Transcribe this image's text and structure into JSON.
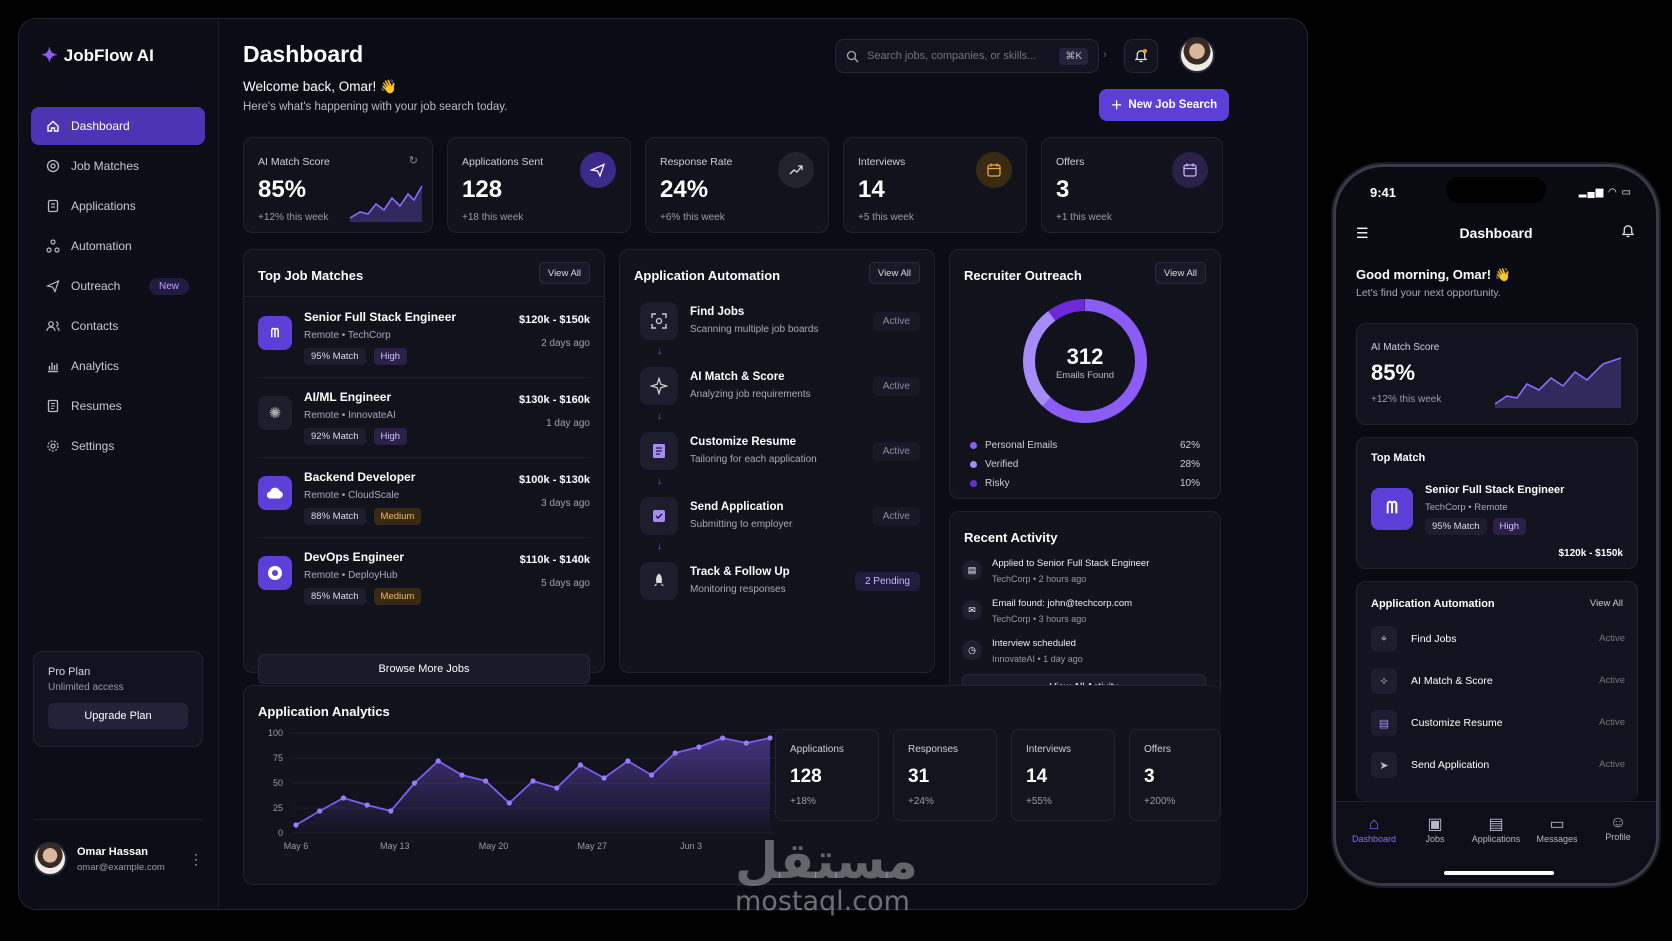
{
  "app": {
    "name": "JobFlow AI"
  },
  "sidebar": {
    "items": [
      {
        "label": "Dashboard"
      },
      {
        "label": "Job Matches"
      },
      {
        "label": "Applications"
      },
      {
        "label": "Automation"
      },
      {
        "label": "Outreach",
        "badge": "New"
      },
      {
        "label": "Contacts"
      },
      {
        "label": "Analytics"
      },
      {
        "label": "Resumes"
      },
      {
        "label": "Settings"
      }
    ],
    "plan": {
      "title": "Pro Plan",
      "subtitle": "Unlimited access",
      "button": "Upgrade Plan"
    },
    "user": {
      "name": "Omar Hassan",
      "email": "omar@example.com"
    }
  },
  "header": {
    "title": "Dashboard",
    "welcome": "Welcome back, Omar! 👋",
    "subtitle": "Here's what's happening with your job search today.",
    "search_placeholder": "Search jobs, companies, or skills...",
    "search_shortcut": "⌘K",
    "new_search": "New Job Search"
  },
  "kpis": [
    {
      "label": "AI Match Score",
      "value": "85%",
      "change": "+12% this week"
    },
    {
      "label": "Applications Sent",
      "value": "128",
      "change": "+18 this week"
    },
    {
      "label": "Response Rate",
      "value": "24%",
      "change": "+6% this week"
    },
    {
      "label": "Interviews",
      "value": "14",
      "change": "+5 this week"
    },
    {
      "label": "Offers",
      "value": "3",
      "change": "+1 this week"
    }
  ],
  "top_matches": {
    "title": "Top Job Matches",
    "view_all": "View All",
    "browse": "Browse More Jobs",
    "jobs": [
      {
        "title": "Senior Full Stack Engineer",
        "meta": "Remote • TechCorp",
        "match": "95% Match",
        "level": "High",
        "salary": "$120k - $150k",
        "age": "2 days ago"
      },
      {
        "title": "AI/ML Engineer",
        "meta": "Remote • InnovateAI",
        "match": "92% Match",
        "level": "High",
        "salary": "$130k - $160k",
        "age": "1 day ago"
      },
      {
        "title": "Backend Developer",
        "meta": "Remote • CloudScale",
        "match": "88% Match",
        "level": "Medium",
        "salary": "$100k - $130k",
        "age": "3 days ago"
      },
      {
        "title": "DevOps Engineer",
        "meta": "Remote • DeployHub",
        "match": "85% Match",
        "level": "Medium",
        "salary": "$110k - $140k",
        "age": "5 days ago"
      }
    ]
  },
  "automation": {
    "title": "Application Automation",
    "view_all": "View All",
    "steps": [
      {
        "title": "Find Jobs",
        "desc": "Scanning multiple job boards",
        "status": "Active"
      },
      {
        "title": "AI Match & Score",
        "desc": "Analyzing job requirements",
        "status": "Active"
      },
      {
        "title": "Customize Resume",
        "desc": "Tailoring for each application",
        "status": "Active"
      },
      {
        "title": "Send Application",
        "desc": "Submitting to employer",
        "status": "Active"
      },
      {
        "title": "Track & Follow Up",
        "desc": "Monitoring responses",
        "status": "2 Pending"
      }
    ]
  },
  "outreach": {
    "title": "Recruiter Outreach",
    "view_all": "View All",
    "total": "312",
    "total_label": "Emails Found",
    "breakdown": [
      {
        "label": "Personal Emails",
        "pct": "62%",
        "color": "#8b5cf6"
      },
      {
        "label": "Verified",
        "pct": "28%",
        "color": "#a78bfa"
      },
      {
        "label": "Risky",
        "pct": "10%",
        "color": "#6d28d9"
      }
    ]
  },
  "activity": {
    "title": "Recent Activity",
    "button": "View All Activity",
    "items": [
      {
        "text": "Applied to Senior Full Stack Engineer",
        "meta": "TechCorp • 2 hours ago"
      },
      {
        "text": "Email found: john@techcorp.com",
        "meta": "TechCorp • 3 hours ago"
      },
      {
        "text": "Interview scheduled",
        "meta": "InnovateAI • 1 day ago"
      }
    ]
  },
  "analytics": {
    "title": "Application Analytics",
    "stats": [
      {
        "label": "Applications",
        "value": "128",
        "change": "+18%"
      },
      {
        "label": "Responses",
        "value": "31",
        "change": "+24%"
      },
      {
        "label": "Interviews",
        "value": "14",
        "change": "+55%"
      },
      {
        "label": "Offers",
        "value": "3",
        "change": "+200%"
      }
    ]
  },
  "chart_data": {
    "type": "area",
    "x_ticks": [
      "May 6",
      "May 13",
      "May 20",
      "May 27",
      "Jun 3"
    ],
    "y_ticks": [
      "0",
      "25",
      "50",
      "75",
      "100"
    ],
    "ylim": [
      0,
      100
    ],
    "color": "#7c5cf0",
    "values": [
      8,
      22,
      35,
      28,
      22,
      50,
      72,
      58,
      52,
      30,
      52,
      45,
      68,
      55,
      72,
      58,
      80,
      86,
      95,
      90,
      95
    ]
  },
  "phone": {
    "time": "9:41",
    "title": "Dashboard",
    "greeting": "Good morning, Omar! 👋",
    "subtitle": "Let's find your next opportunity.",
    "score": {
      "label": "AI Match Score",
      "value": "85%",
      "change": "+12% this week"
    },
    "top_match": {
      "title": "Top Match",
      "job": "Senior Full Stack Engineer",
      "meta": "TechCorp • Remote",
      "match": "95% Match",
      "level": "High",
      "salary": "$120k - $150k"
    },
    "automation": {
      "title": "Application Automation",
      "view_all": "View All",
      "steps": [
        {
          "title": "Find Jobs",
          "status": "Active"
        },
        {
          "title": "AI Match & Score",
          "status": "Active"
        },
        {
          "title": "Customize Resume",
          "status": "Active"
        },
        {
          "title": "Send Application",
          "status": "Active"
        }
      ]
    },
    "nav": [
      {
        "label": "Dashboard"
      },
      {
        "label": "Jobs"
      },
      {
        "label": "Applications"
      },
      {
        "label": "Messages"
      },
      {
        "label": "Profile"
      }
    ]
  },
  "watermark": {
    "arabic": "مستقل",
    "latin": "mostaql.com"
  }
}
